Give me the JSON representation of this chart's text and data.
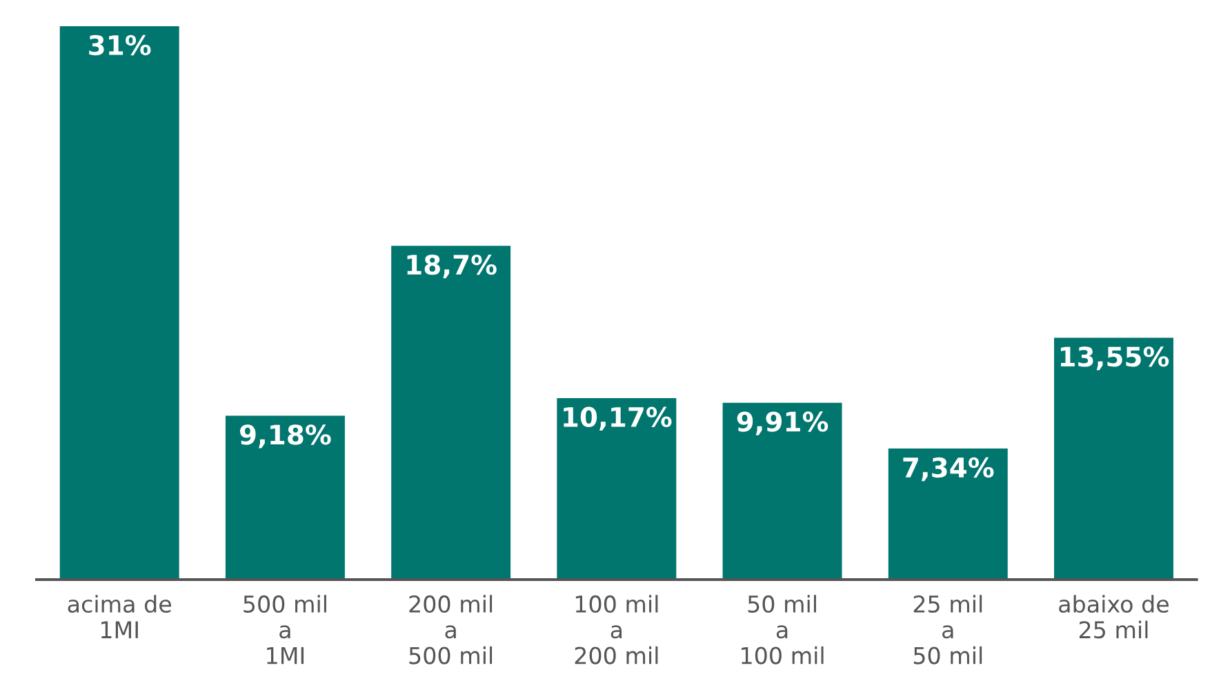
{
  "chart_data": {
    "type": "bar",
    "categories": [
      "acima de\n1MI",
      "500 mil\na\n1MI",
      "200 mil\na\n500 mil",
      "100 mil\na\n200 mil",
      "50 mil\na\n100 mil",
      "25 mil\na\n50 mil",
      "abaixo de\n25 mil"
    ],
    "values": [
      31,
      9.18,
      18.7,
      10.17,
      9.91,
      7.34,
      13.55
    ],
    "value_labels": [
      "31%",
      "9,18%",
      "18,7%",
      "10,17%",
      "9,91%",
      "7,34%",
      "13,55%"
    ],
    "color": "#00766e",
    "grid": false,
    "legend": false
  }
}
